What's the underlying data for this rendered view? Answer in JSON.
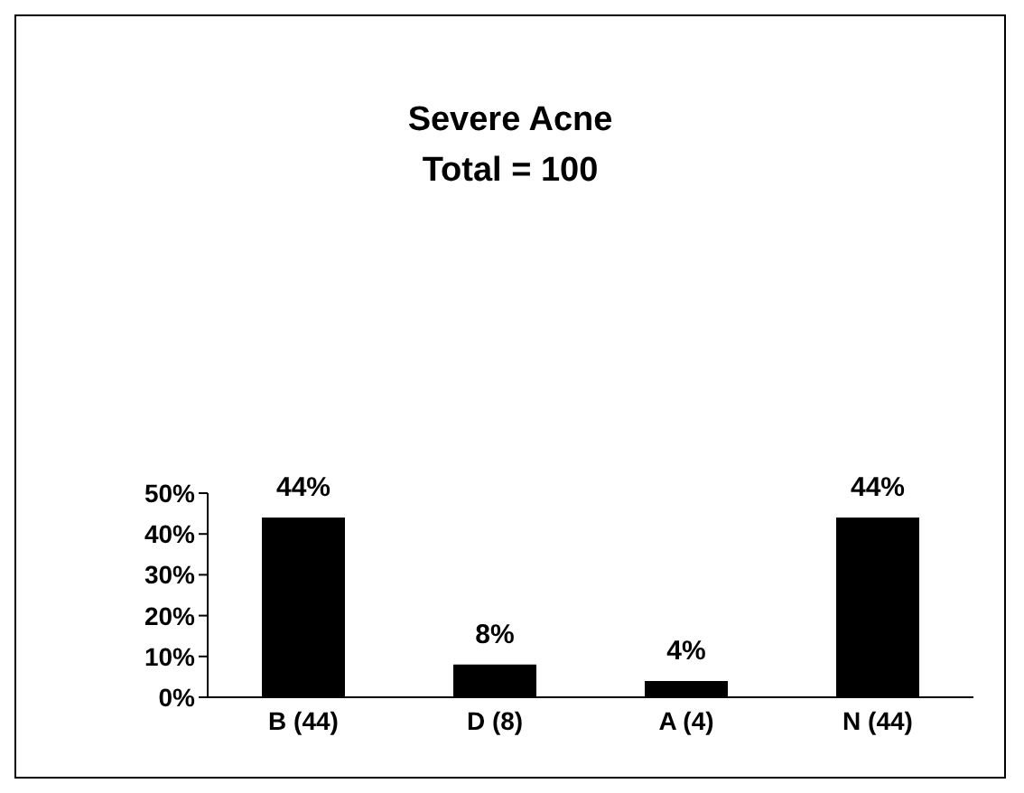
{
  "chart_data": {
    "type": "bar",
    "title": "Severe Acne",
    "subtitle": "Total = 100",
    "categories": [
      "B (44)",
      "D (8)",
      "A (4)",
      "N (44)"
    ],
    "values": [
      44,
      8,
      4,
      44
    ],
    "color": "#000000",
    "value_labels": [
      "44%",
      "8%",
      "4%",
      "44%"
    ],
    "ylim": [
      0,
      50
    ],
    "yticks": [
      {
        "value": 0,
        "label": "0%"
      },
      {
        "value": 10,
        "label": "10%"
      },
      {
        "value": 20,
        "label": "20%"
      },
      {
        "value": 30,
        "label": "30%"
      },
      {
        "value": 40,
        "label": "40%"
      },
      {
        "value": 50,
        "label": "50%"
      }
    ],
    "grid": false,
    "legend": false
  }
}
